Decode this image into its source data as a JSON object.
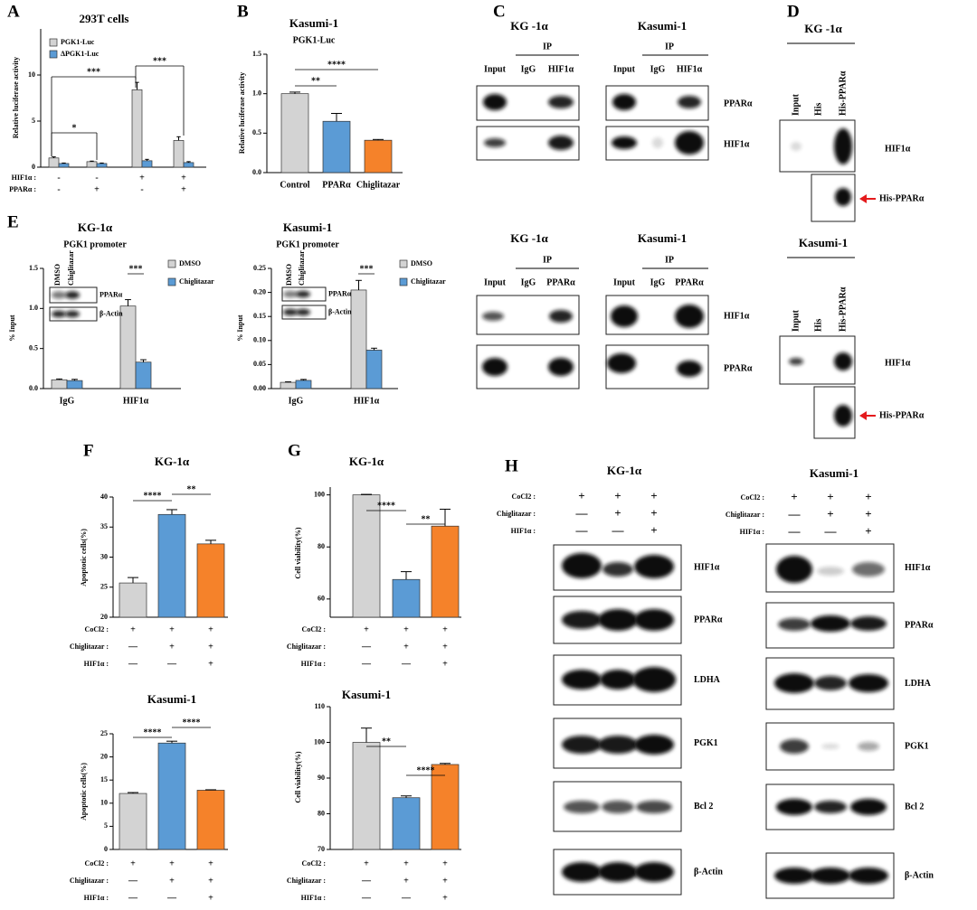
{
  "panel_letters": [
    "A",
    "B",
    "C",
    "D",
    "E",
    "F",
    "G",
    "H"
  ],
  "chart_data": [
    {
      "type": "bar",
      "title": "293T cells",
      "ylabel": "Relative luciferase activity",
      "ylim": [
        0,
        15
      ],
      "yticks": [
        0,
        5,
        10
      ],
      "series": [
        {
          "name": "PGK1-Luc",
          "color": "#d3d3d3",
          "values": [
            1.0,
            0.6,
            8.4,
            2.9
          ],
          "errors": [
            0.12,
            0.06,
            0.8,
            0.4
          ]
        },
        {
          "name": "ΔPGK1-Luc",
          "color": "#5b9bd5",
          "values": [
            0.4,
            0.4,
            0.7,
            0.5
          ],
          "errors": [
            0.05,
            0.05,
            0.15,
            0.1
          ]
        }
      ],
      "conditions": [
        {
          "name": "HIF1α :",
          "marks": [
            "-",
            "-",
            "+",
            "+"
          ]
        },
        {
          "name": "PPARα :",
          "marks": [
            "-",
            "+",
            "-",
            "+"
          ]
        }
      ],
      "significance": [
        "*",
        "***",
        "***"
      ]
    },
    {
      "type": "bar",
      "title": "Kasumi-1",
      "subtitle": "PGK1-Luc",
      "ylabel": "Relative luciferase activity",
      "ylim": [
        0,
        1.5
      ],
      "yticks": [
        {
          "value": 0,
          "label": "0.0"
        },
        0.5,
        {
          "value": 1,
          "label": "1.0"
        },
        1.5
      ],
      "categories": [
        "Control",
        "PPARα",
        "Chiglitazar"
      ],
      "values": [
        1.0,
        0.65,
        0.41
      ],
      "errors": [
        0.02,
        0.1,
        0.01
      ],
      "colors": [
        "#d3d3d3",
        "#5b9bd5",
        "#f5822a"
      ],
      "significance": [
        "**",
        "****"
      ]
    },
    {
      "type": "bar",
      "title": "KG-1α",
      "subtitle": "PGK1 promoter",
      "ylabel": "% Input",
      "ylim": [
        0,
        1.5
      ],
      "yticks": [
        {
          "value": 0,
          "label": "0.0"
        },
        0.5,
        {
          "value": 1,
          "label": "1.0"
        },
        1.5
      ],
      "categories": [
        "IgG",
        "HIF1α"
      ],
      "series": [
        {
          "name": "DMSO",
          "color": "#d3d3d3",
          "values": [
            0.11,
            1.03
          ],
          "errors": [
            0.01,
            0.08
          ]
        },
        {
          "name": "Chiglitazar",
          "color": "#5b9bd5",
          "values": [
            0.1,
            0.33
          ],
          "errors": [
            0.015,
            0.03
          ]
        }
      ],
      "inset": {
        "lanes": [
          "DMSO",
          "Chiglitazar"
        ],
        "rows": [
          "PPARα",
          "β-Actin"
        ]
      },
      "significance": [
        "***"
      ]
    },
    {
      "type": "bar",
      "title": "Kasumi-1",
      "subtitle": "PGK1 promoter",
      "ylabel": "% Input",
      "ylim": [
        0,
        0.25
      ],
      "yticks": [
        {
          "value": 0,
          "label": "0.00"
        },
        0.05,
        {
          "value": 0.1,
          "label": "0.10"
        },
        0.15,
        {
          "value": 0.2,
          "label": "0.20"
        },
        0.25
      ],
      "categories": [
        "IgG",
        "HIF1α"
      ],
      "series": [
        {
          "name": "DMSO",
          "color": "#d3d3d3",
          "values": [
            0.013,
            0.205
          ],
          "errors": [
            0.001,
            0.02
          ]
        },
        {
          "name": "Chiglitazar",
          "color": "#5b9bd5",
          "values": [
            0.017,
            0.08
          ],
          "errors": [
            0.002,
            0.004
          ]
        }
      ],
      "inset": {
        "lanes": [
          "DMSO",
          "Chiglitazar"
        ],
        "rows": [
          "PPARα",
          "β-Actin"
        ]
      },
      "significance": [
        "***"
      ]
    },
    {
      "type": "bar",
      "title": "KG-1α",
      "ylabel": "Apoptotic cells(%)",
      "ylim": [
        20,
        40
      ],
      "yticks": [
        20,
        25,
        30,
        35,
        40
      ],
      "values": [
        25.7,
        37.1,
        32.2
      ],
      "errors": [
        0.9,
        0.8,
        0.6
      ],
      "colors": [
        "#d3d3d3",
        "#5b9bd5",
        "#f5822a"
      ],
      "conditions": [
        {
          "name": "CoCl2 :",
          "marks": [
            "+",
            "+",
            "+"
          ]
        },
        {
          "name": "Chiglitazar :",
          "marks": [
            "—",
            "+",
            "+"
          ]
        },
        {
          "name": "HIF1α :",
          "marks": [
            "—",
            "—",
            "+"
          ]
        }
      ],
      "significance": [
        "****",
        "**"
      ]
    },
    {
      "type": "bar",
      "title": "Kasumi-1",
      "ylabel": "Apoptotic cells(%)",
      "ylim": [
        0,
        25
      ],
      "yticks": [
        0,
        5,
        10,
        15,
        20,
        25
      ],
      "values": [
        12.1,
        23.0,
        12.8
      ],
      "errors": [
        0.2,
        0.4,
        0.1
      ],
      "colors": [
        "#d3d3d3",
        "#5b9bd5",
        "#f5822a"
      ],
      "conditions": [
        {
          "name": "CoCl2 :",
          "marks": [
            "+",
            "+",
            "+"
          ]
        },
        {
          "name": "Chiglitazar :",
          "marks": [
            "—",
            "+",
            "+"
          ]
        },
        {
          "name": "HIF1α :",
          "marks": [
            "—",
            "—",
            "+"
          ]
        }
      ],
      "significance": [
        "****",
        "****"
      ]
    },
    {
      "type": "bar",
      "title": "KG-1α",
      "ylabel": "Cell viability(%)",
      "ylim": [
        53,
        103
      ],
      "yticks": [
        60,
        80,
        100
      ],
      "values": [
        100,
        67.5,
        88
      ],
      "errors": [
        0.2,
        3,
        6.5
      ],
      "colors": [
        "#d3d3d3",
        "#5b9bd5",
        "#f5822a"
      ],
      "conditions": [
        {
          "name": "CoCl2 :",
          "marks": [
            "+",
            "+",
            "+"
          ]
        },
        {
          "name": "Chiglitazar :",
          "marks": [
            "—",
            "+",
            "+"
          ]
        },
        {
          "name": "HIF1α :",
          "marks": [
            "—",
            "—",
            "+"
          ]
        }
      ],
      "significance": [
        "****",
        "**"
      ]
    },
    {
      "type": "bar",
      "title": "Kasumi-1",
      "ylabel": "Cell viability(%)",
      "ylim": [
        70,
        110
      ],
      "yticks": [
        70,
        80,
        90,
        100,
        110
      ],
      "values": [
        100,
        84.5,
        93.8
      ],
      "errors": [
        4,
        0.5,
        0.3
      ],
      "colors": [
        "#d3d3d3",
        "#5b9bd5",
        "#f5822a"
      ],
      "conditions": [
        {
          "name": "CoCl2 :",
          "marks": [
            "+",
            "+",
            "+"
          ]
        },
        {
          "name": "Chiglitazar :",
          "marks": [
            "—",
            "+",
            "+"
          ]
        },
        {
          "name": "HIF1α :",
          "marks": [
            "—",
            "—",
            "+"
          ]
        }
      ],
      "significance": [
        "**",
        "****"
      ]
    }
  ],
  "C": {
    "blocks": [
      {
        "groups": [
          {
            "cell": "KG -1α",
            "ip": "IP",
            "lanes": [
              "Input",
              "IgG",
              "HIF1α"
            ]
          },
          {
            "cell": "Kasumi-1",
            "ip": "IP",
            "lanes": [
              "Input",
              "IgG",
              "HIF1α"
            ]
          }
        ],
        "rows": [
          "PPARα",
          "HIF1α"
        ]
      },
      {
        "groups": [
          {
            "cell": "KG -1α",
            "ip": "IP",
            "lanes": [
              "Input",
              "IgG",
              "PPARα"
            ]
          },
          {
            "cell": "Kasumi-1",
            "ip": "IP",
            "lanes": [
              "Input",
              "IgG",
              "PPARα"
            ]
          }
        ],
        "rows": [
          "HIF1α",
          "PPARα"
        ]
      }
    ]
  },
  "D": {
    "blocks": [
      {
        "cell": "KG -1α",
        "lanes": [
          "Input",
          "His",
          "His-PPARα"
        ],
        "rows": [
          "HIF1α",
          "His-PPARα"
        ]
      },
      {
        "cell": "Kasumi-1",
        "lanes": [
          "Input",
          "His",
          "His-PPARα"
        ],
        "rows": [
          "HIF1α",
          "His-PPARα"
        ]
      }
    ]
  },
  "H": {
    "panels": [
      {
        "cell": "KG-1α",
        "conditions": [
          {
            "name": "CoCl2 :",
            "marks": [
              "+",
              "+",
              "+"
            ]
          },
          {
            "name": "Chiglitazar :",
            "marks": [
              "—",
              "+",
              "+"
            ]
          },
          {
            "name": "HIF1α :",
            "marks": [
              "—",
              "—",
              "+"
            ]
          }
        ]
      },
      {
        "cell": "Kasumi-1",
        "conditions": [
          {
            "name": "CoCl2 :",
            "marks": [
              "+",
              "+",
              "+"
            ]
          },
          {
            "name": "Chiglitazar :",
            "marks": [
              "—",
              "+",
              "+"
            ]
          },
          {
            "name": "HIF1α :",
            "marks": [
              "—",
              "—",
              "+"
            ]
          }
        ]
      }
    ],
    "rows": [
      "HIF1α",
      "PPARα",
      "LDHA",
      "PGK1",
      "Bcl 2",
      "β-Actin"
    ]
  }
}
